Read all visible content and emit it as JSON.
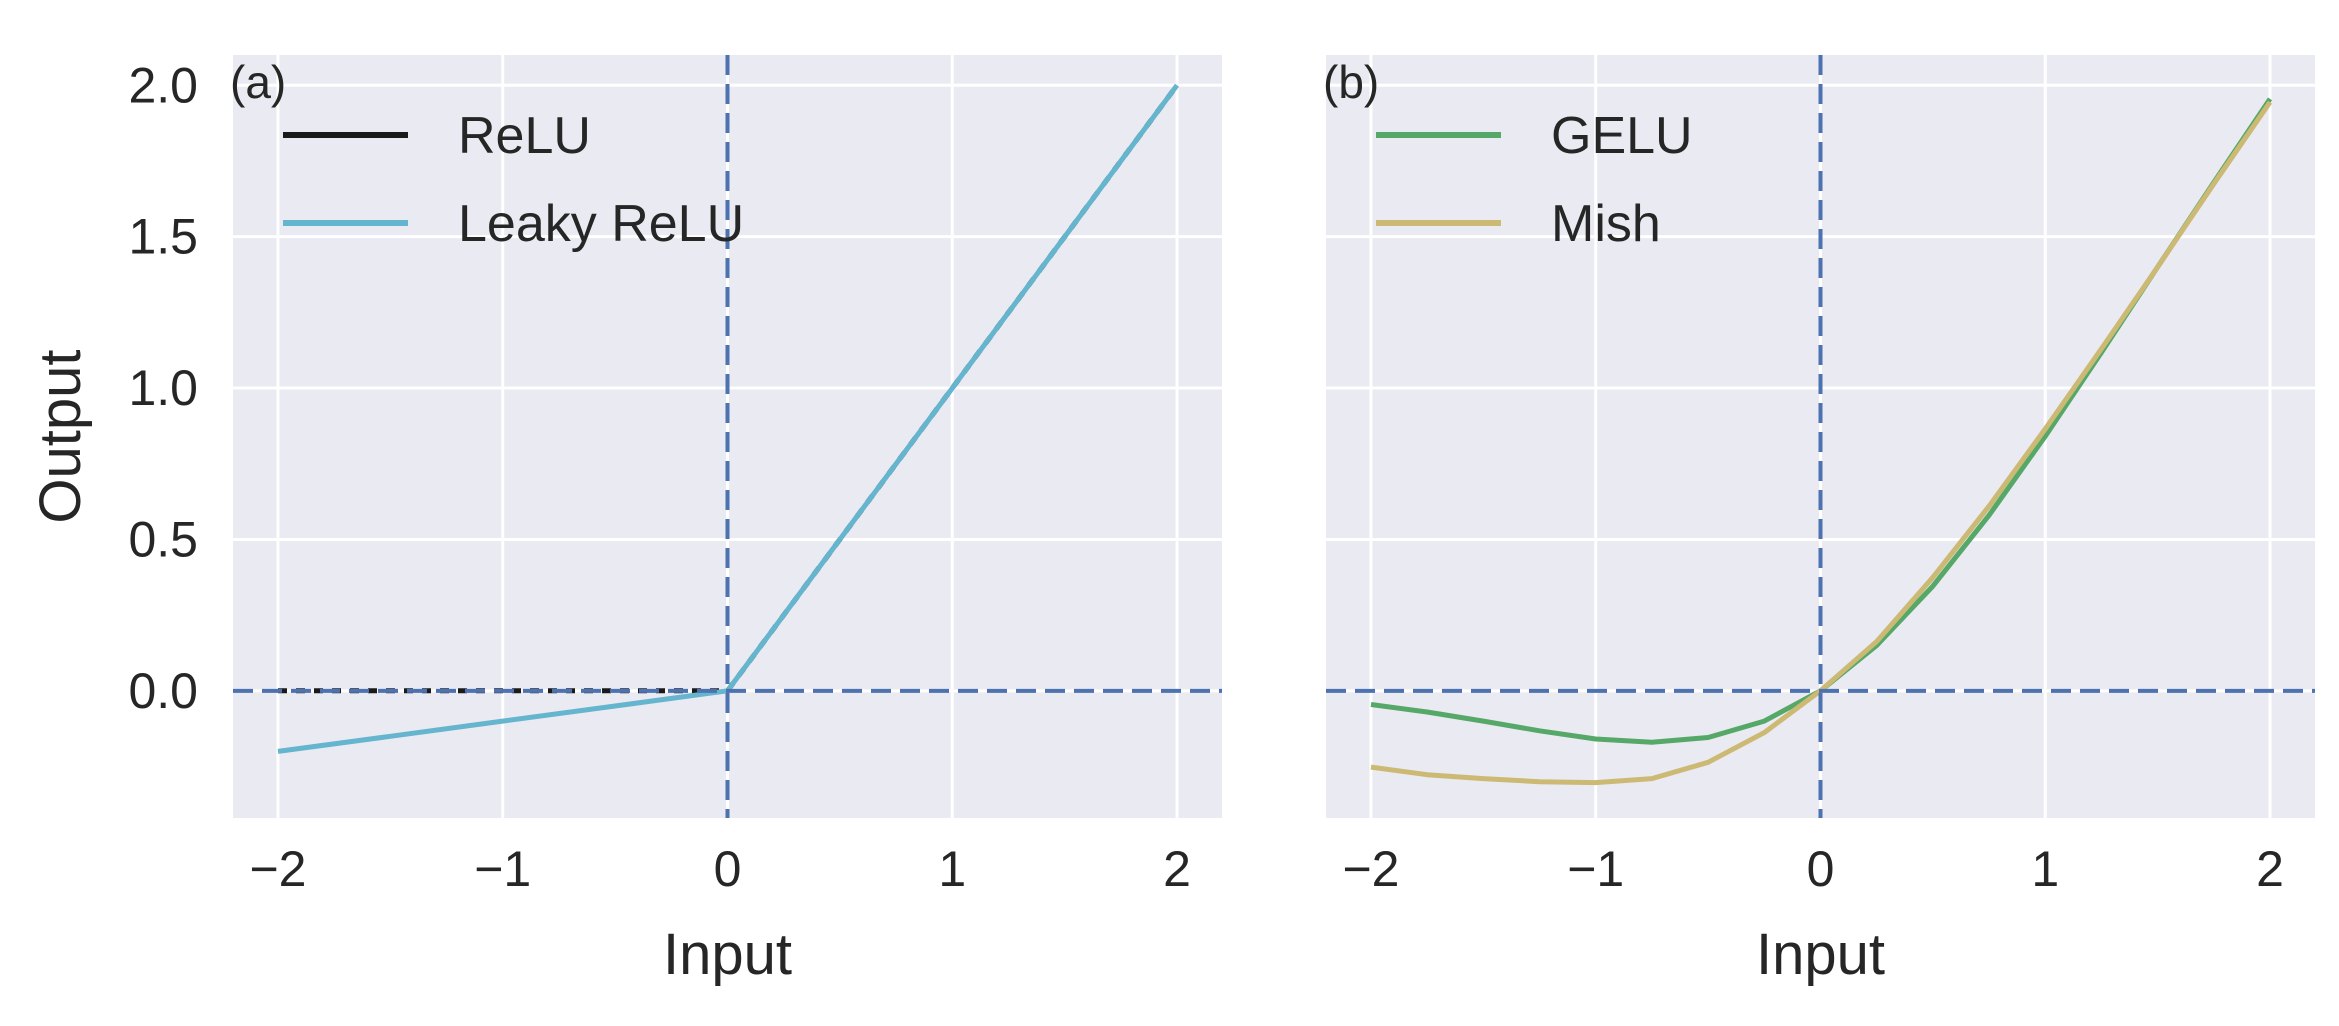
{
  "chart_data": [
    {
      "type": "line",
      "panel_label": "(a)",
      "title": "",
      "xlabel": "Input",
      "ylabel": "Output",
      "xlim": [
        -2.2,
        2.2
      ],
      "ylim": [
        -0.42,
        2.1
      ],
      "xticks": [
        -2,
        -1,
        0,
        1,
        2
      ],
      "xtick_labels": [
        "−2",
        "−1",
        "0",
        "1",
        "2"
      ],
      "yticks": [
        0.0,
        0.5,
        1.0,
        1.5,
        2.0
      ],
      "ytick_labels": [
        "0.0",
        "0.5",
        "1.0",
        "1.5",
        "2.0"
      ],
      "grid": true,
      "legend_position": "top-left",
      "reference_lines": {
        "x": 0,
        "y": 0,
        "style": "dashed",
        "color": "#4c72b0"
      },
      "series": [
        {
          "name": "ReLU",
          "color": "#1a1a1a",
          "style": "dotted",
          "x": [
            -2,
            -1.5,
            -1,
            -0.5,
            0,
            0.5,
            1,
            1.5,
            2
          ],
          "y": [
            0,
            0,
            0,
            0,
            0,
            0.5,
            1,
            1.5,
            2
          ]
        },
        {
          "name": "Leaky ReLU",
          "color": "#64b5cd",
          "style": "solid",
          "x": [
            -2,
            -1.5,
            -1,
            -0.5,
            0,
            0.5,
            1,
            1.5,
            2
          ],
          "y": [
            -0.2,
            -0.15,
            -0.1,
            -0.05,
            0,
            0.5,
            1,
            1.5,
            2
          ]
        }
      ]
    },
    {
      "type": "line",
      "panel_label": "(b)",
      "title": "",
      "xlabel": "Input",
      "ylabel": "",
      "xlim": [
        -2.2,
        2.2
      ],
      "ylim": [
        -0.42,
        2.1
      ],
      "xticks": [
        -2,
        -1,
        0,
        1,
        2
      ],
      "xtick_labels": [
        "−2",
        "−1",
        "0",
        "1",
        "2"
      ],
      "yticks": [
        0.0,
        0.5,
        1.0,
        1.5,
        2.0
      ],
      "ytick_labels": [],
      "grid": true,
      "legend_position": "top-left",
      "reference_lines": {
        "x": 0,
        "y": 0,
        "style": "dashed",
        "color": "#4c72b0"
      },
      "series": [
        {
          "name": "GELU",
          "color": "#55a868",
          "style": "solid",
          "x": [
            -2,
            -1.75,
            -1.5,
            -1.25,
            -1,
            -0.75,
            -0.5,
            -0.25,
            0,
            0.25,
            0.5,
            0.75,
            1,
            1.25,
            1.5,
            1.75,
            2
          ],
          "y": [
            -0.045,
            -0.07,
            -0.1,
            -0.132,
            -0.159,
            -0.17,
            -0.154,
            -0.1,
            0,
            0.15,
            0.346,
            0.58,
            0.841,
            1.118,
            1.4,
            1.68,
            1.955
          ]
        },
        {
          "name": "Mish",
          "color": "#ccb974",
          "style": "solid",
          "x": [
            -2,
            -1.75,
            -1.5,
            -1.25,
            -1,
            -0.75,
            -0.5,
            -0.25,
            0,
            0.25,
            0.5,
            0.75,
            1,
            1.25,
            1.5,
            1.75,
            2
          ],
          "y": [
            -0.252,
            -0.277,
            -0.29,
            -0.3,
            -0.303,
            -0.29,
            -0.236,
            -0.138,
            0,
            0.163,
            0.375,
            0.61,
            0.865,
            1.13,
            1.4,
            1.675,
            1.944
          ]
        }
      ]
    }
  ]
}
